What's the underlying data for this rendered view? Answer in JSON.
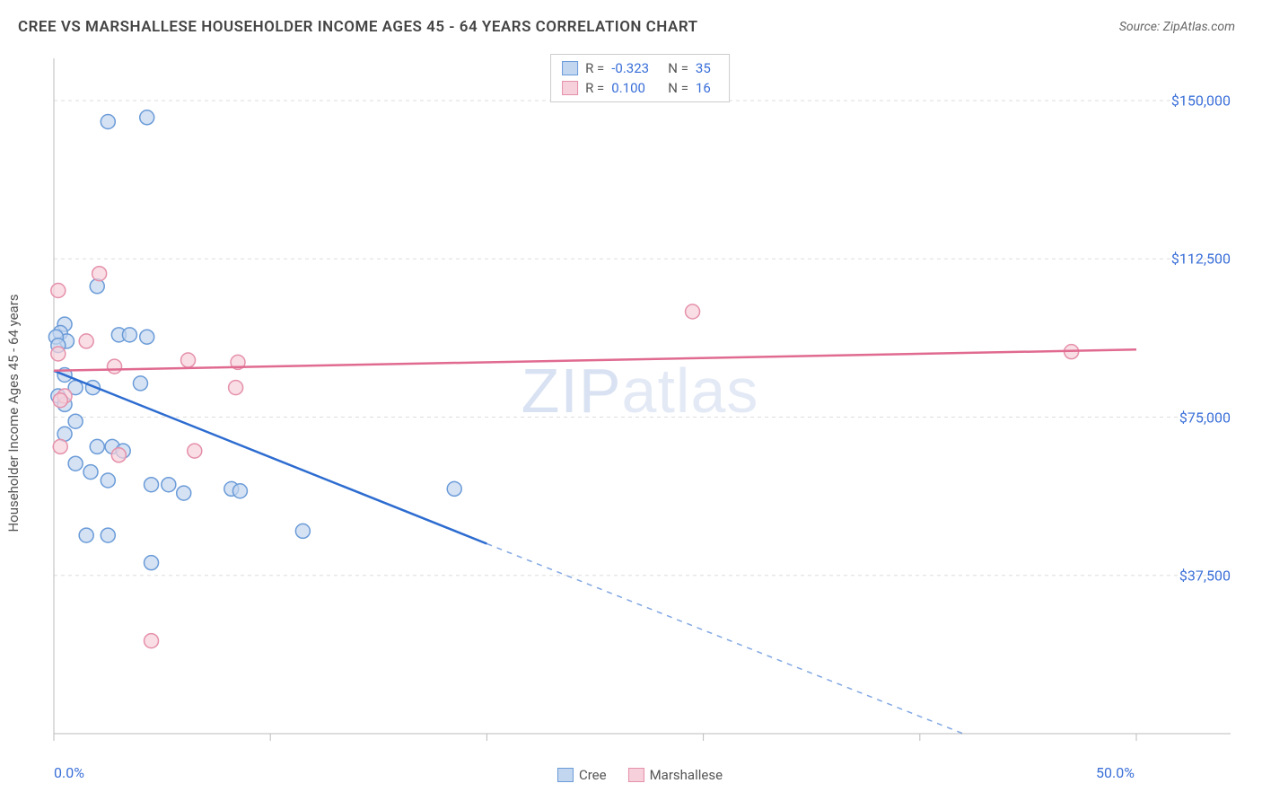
{
  "header": {
    "title": "CREE VS MARSHALLESE HOUSEHOLDER INCOME AGES 45 - 64 YEARS CORRELATION CHART",
    "source": "Source: ZipAtlas.com"
  },
  "watermark_main": "ZIP",
  "watermark_sub": "atlas",
  "yaxis_label": "Householder Income Ages 45 - 64 years",
  "chart": {
    "type": "scatter",
    "background_color": "#ffffff",
    "grid_color": "#dddddd",
    "axis_color": "#bbbbbb",
    "xlim": [
      0,
      50
    ],
    "ylim": [
      0,
      160000
    ],
    "yticks": [
      37500,
      75000,
      112500,
      150000
    ],
    "ytick_labels": [
      "$37,500",
      "$75,000",
      "$112,500",
      "$150,000"
    ],
    "xticks": [
      0,
      10,
      20,
      30,
      40,
      50
    ],
    "xtick_labels_shown": {
      "0": "0.0%",
      "50": "50.0%"
    },
    "series": [
      {
        "name": "Cree",
        "color_fill": "#c3d6f0",
        "color_stroke": "#6a9bd8",
        "trend_color": "#2d6cd0",
        "R": "-0.323",
        "N": "35",
        "trend_start": [
          0,
          86000
        ],
        "trend_solid_end": [
          20,
          45000
        ],
        "trend_dash_end": [
          42,
          0
        ],
        "points": [
          [
            2.5,
            145000
          ],
          [
            4.3,
            146000
          ],
          [
            0.5,
            97000
          ],
          [
            0.3,
            95000
          ],
          [
            0.6,
            93000
          ],
          [
            2.0,
            106000
          ],
          [
            3.0,
            94500
          ],
          [
            3.5,
            94500
          ],
          [
            4.3,
            94000
          ],
          [
            0.5,
            85000
          ],
          [
            1.0,
            82000
          ],
          [
            1.8,
            82000
          ],
          [
            0.2,
            80000
          ],
          [
            0.5,
            78000
          ],
          [
            4.0,
            83000
          ],
          [
            1.0,
            74000
          ],
          [
            0.5,
            71000
          ],
          [
            2.0,
            68000
          ],
          [
            2.7,
            68000
          ],
          [
            3.2,
            67000
          ],
          [
            1.0,
            64000
          ],
          [
            1.7,
            62000
          ],
          [
            2.5,
            60000
          ],
          [
            4.5,
            59000
          ],
          [
            5.3,
            59000
          ],
          [
            6.0,
            57000
          ],
          [
            8.2,
            58000
          ],
          [
            8.6,
            57500
          ],
          [
            18.5,
            58000
          ],
          [
            1.5,
            47000
          ],
          [
            2.5,
            47000
          ],
          [
            11.5,
            48000
          ],
          [
            4.5,
            40500
          ],
          [
            0.1,
            94000
          ],
          [
            0.2,
            92000
          ]
        ]
      },
      {
        "name": "Marshallese",
        "color_fill": "#f6d0da",
        "color_stroke": "#e590aa",
        "trend_color": "#e06a90",
        "R": "0.100",
        "N": "16",
        "trend_start": [
          0,
          86000
        ],
        "trend_solid_end": [
          50,
          91000
        ],
        "trend_dash_end": null,
        "points": [
          [
            2.1,
            109000
          ],
          [
            0.2,
            105000
          ],
          [
            29.5,
            100000
          ],
          [
            47.0,
            90500
          ],
          [
            1.5,
            93000
          ],
          [
            0.2,
            90000
          ],
          [
            2.8,
            87000
          ],
          [
            6.2,
            88500
          ],
          [
            8.5,
            88000
          ],
          [
            0.5,
            80000
          ],
          [
            0.3,
            79000
          ],
          [
            8.4,
            82000
          ],
          [
            6.5,
            67000
          ],
          [
            3.0,
            66000
          ],
          [
            0.3,
            68000
          ],
          [
            4.5,
            22000
          ]
        ]
      }
    ]
  }
}
